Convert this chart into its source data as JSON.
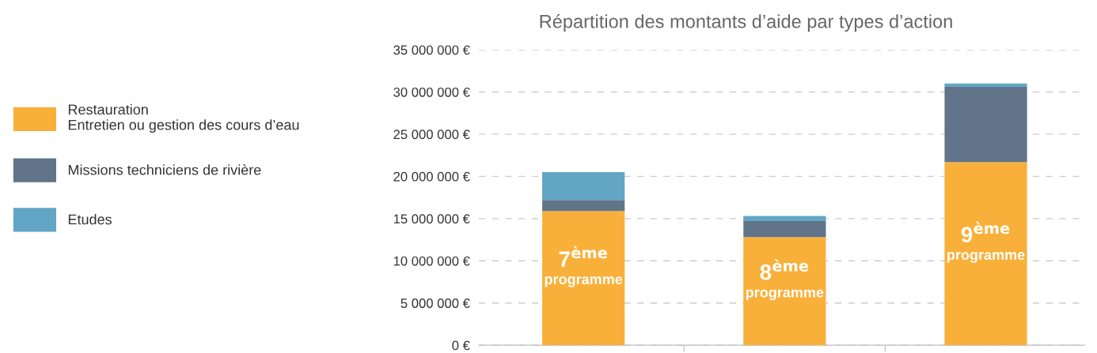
{
  "chart_data": {
    "type": "bar",
    "title": "Répartition des montants d’aide par types d’action",
    "stacked": true,
    "categories": [
      "7$^{ème}$ programme",
      "8$^{ème}$ programme",
      "9$^{ème}$ programme"
    ],
    "series": [
      {
        "name": "Restauration\nEntretien ou gestion des cours d’eau",
        "color": "#f9b03a",
        "values": [
          15900000,
          12800000,
          21700000
        ]
      },
      {
        "name": "Missions techniciens de rivière",
        "color": "#627489",
        "values": [
          1300000,
          1900000,
          8900000
        ]
      },
      {
        "name": "Etudes",
        "color": "#62a5c5",
        "values": [
          3300000,
          600000,
          400000
        ]
      }
    ],
    "ylim": [
      0,
      35000000
    ],
    "yticks": [
      {
        "value": 0,
        "label": "0 €"
      },
      {
        "value": 5000000,
        "label": "5 000 000 €"
      },
      {
        "value": 10000000,
        "label": "10 000 000 €"
      },
      {
        "value": 15000000,
        "label": "15 000 000 €"
      },
      {
        "value": 20000000,
        "label": "20 000 000 €"
      },
      {
        "value": 25000000,
        "label": "25 000 000 €"
      },
      {
        "value": 30000000,
        "label": "30 000 000 €"
      },
      {
        "value": 35000000,
        "label": "35 000 000 €"
      }
    ],
    "grid": "y",
    "legend": "left"
  }
}
